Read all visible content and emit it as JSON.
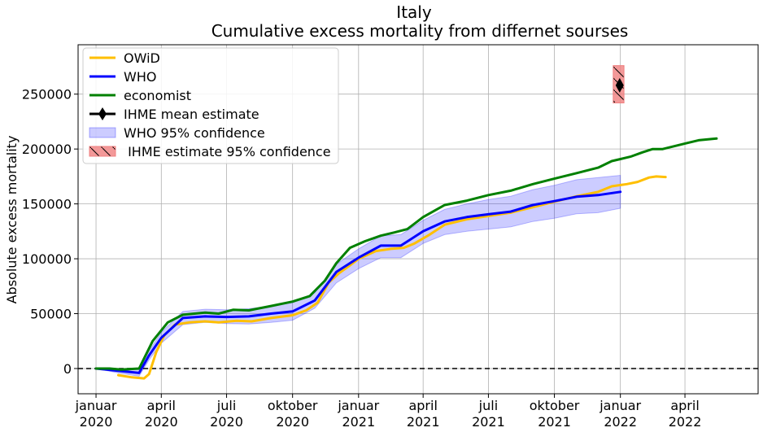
{
  "chart_data": {
    "type": "line",
    "title": "Italy",
    "subtitle": "Cumulative excess mortality from differnet sourses",
    "xlabel": "",
    "ylabel": "Absolute excess mortality",
    "x_axis": "date",
    "xlim": [
      "2019-12-07",
      "2022-07-12"
    ],
    "ylim": [
      -23000,
      295000
    ],
    "grid": true,
    "legend_position": "top-left",
    "x_ticks": [
      {
        "date": "2020-01-01",
        "label1": "januar",
        "label2": "2020"
      },
      {
        "date": "2020-04-01",
        "label1": "april",
        "label2": "2020"
      },
      {
        "date": "2020-07-01",
        "label1": "juli",
        "label2": "2020"
      },
      {
        "date": "2020-10-01",
        "label1": "oktober",
        "label2": "2020"
      },
      {
        "date": "2021-01-01",
        "label1": "januar",
        "label2": "2021"
      },
      {
        "date": "2021-04-01",
        "label1": "april",
        "label2": "2021"
      },
      {
        "date": "2021-07-01",
        "label1": "juli",
        "label2": "2021"
      },
      {
        "date": "2021-10-01",
        "label1": "oktober",
        "label2": "2021"
      },
      {
        "date": "2022-01-01",
        "label1": "januar",
        "label2": "2022"
      },
      {
        "date": "2022-04-01",
        "label1": "april",
        "label2": "2022"
      }
    ],
    "y_ticks": [
      0,
      50000,
      100000,
      150000,
      200000,
      250000
    ],
    "y_tick_labels": [
      "0",
      "50000",
      "100000",
      "150000",
      "200000",
      "250000"
    ],
    "zero_line": {
      "y": 0,
      "style": "dashed",
      "color": "#000000"
    },
    "series": [
      {
        "name": "OWiD",
        "color": "#ffbf00",
        "points": [
          [
            "2020-02-01",
            -6000
          ],
          [
            "2020-02-20",
            -8000
          ],
          [
            "2020-03-08",
            -9000
          ],
          [
            "2020-03-15",
            -5000
          ],
          [
            "2020-03-25",
            15000
          ],
          [
            "2020-04-05",
            30000
          ],
          [
            "2020-04-20",
            40000
          ],
          [
            "2020-05-10",
            42000
          ],
          [
            "2020-06-01",
            43000
          ],
          [
            "2020-06-20",
            42000
          ],
          [
            "2020-07-15",
            43500
          ],
          [
            "2020-08-05",
            43000
          ],
          [
            "2020-09-01",
            46000
          ],
          [
            "2020-10-01",
            48500
          ],
          [
            "2020-10-20",
            53000
          ],
          [
            "2020-11-05",
            60000
          ],
          [
            "2020-11-20",
            78000
          ],
          [
            "2020-12-05",
            87000
          ],
          [
            "2020-12-20",
            94000
          ],
          [
            "2021-01-01",
            100000
          ],
          [
            "2021-01-25",
            107000
          ],
          [
            "2021-02-15",
            109000
          ],
          [
            "2021-03-05",
            110000
          ],
          [
            "2021-03-20",
            114000
          ],
          [
            "2021-04-10",
            122000
          ],
          [
            "2021-05-01",
            131000
          ],
          [
            "2021-06-01",
            136000
          ],
          [
            "2021-07-01",
            139000
          ],
          [
            "2021-08-01",
            142000
          ],
          [
            "2021-09-01",
            147000
          ],
          [
            "2021-10-01",
            152000
          ],
          [
            "2021-11-01",
            157000
          ],
          [
            "2021-12-01",
            161000
          ],
          [
            "2021-12-20",
            166000
          ],
          [
            "2022-01-10",
            168000
          ],
          [
            "2022-01-25",
            170000
          ],
          [
            "2022-02-10",
            174000
          ],
          [
            "2022-02-20",
            175000
          ],
          [
            "2022-03-05",
            174500
          ]
        ]
      },
      {
        "name": "WHO",
        "color": "#0000ff",
        "points": [
          [
            "2020-01-01",
            0
          ],
          [
            "2020-02-01",
            -2000
          ],
          [
            "2020-03-01",
            -4000
          ],
          [
            "2020-03-15",
            12000
          ],
          [
            "2020-04-01",
            28000
          ],
          [
            "2020-05-01",
            46000
          ],
          [
            "2020-06-01",
            47500
          ],
          [
            "2020-07-01",
            47000
          ],
          [
            "2020-08-01",
            47500
          ],
          [
            "2020-09-01",
            50000
          ],
          [
            "2020-10-01",
            52000
          ],
          [
            "2020-11-01",
            62000
          ],
          [
            "2020-12-01",
            88000
          ],
          [
            "2021-01-01",
            101000
          ],
          [
            "2021-02-01",
            112000
          ],
          [
            "2021-03-01",
            112000
          ],
          [
            "2021-04-01",
            125000
          ],
          [
            "2021-05-01",
            134000
          ],
          [
            "2021-06-01",
            138000
          ],
          [
            "2021-07-01",
            140500
          ],
          [
            "2021-08-01",
            143000
          ],
          [
            "2021-09-01",
            149000
          ],
          [
            "2021-10-01",
            152500
          ],
          [
            "2021-11-01",
            156500
          ],
          [
            "2021-12-01",
            158000
          ],
          [
            "2022-01-01",
            161000
          ]
        ]
      },
      {
        "name": "economist",
        "color": "#008000",
        "points": [
          [
            "2020-01-01",
            0
          ],
          [
            "2020-01-20",
            0
          ],
          [
            "2020-02-05",
            -1000
          ],
          [
            "2020-03-01",
            0
          ],
          [
            "2020-03-20",
            25000
          ],
          [
            "2020-04-10",
            42000
          ],
          [
            "2020-05-01",
            49000
          ],
          [
            "2020-06-01",
            51000
          ],
          [
            "2020-06-20",
            50000
          ],
          [
            "2020-07-10",
            53500
          ],
          [
            "2020-08-01",
            53000
          ],
          [
            "2020-09-01",
            57000
          ],
          [
            "2020-10-01",
            61000
          ],
          [
            "2020-10-25",
            66000
          ],
          [
            "2020-11-15",
            80000
          ],
          [
            "2020-12-01",
            96000
          ],
          [
            "2020-12-20",
            110000
          ],
          [
            "2021-01-10",
            116000
          ],
          [
            "2021-02-01",
            121000
          ],
          [
            "2021-02-20",
            124000
          ],
          [
            "2021-03-10",
            127000
          ],
          [
            "2021-04-01",
            138000
          ],
          [
            "2021-05-01",
            149000
          ],
          [
            "2021-06-01",
            153000
          ],
          [
            "2021-07-01",
            158000
          ],
          [
            "2021-08-01",
            162000
          ],
          [
            "2021-09-01",
            168000
          ],
          [
            "2021-10-01",
            173000
          ],
          [
            "2021-11-01",
            178000
          ],
          [
            "2021-12-01",
            183000
          ],
          [
            "2021-12-20",
            189000
          ],
          [
            "2022-01-15",
            193000
          ],
          [
            "2022-02-01",
            197000
          ],
          [
            "2022-02-15",
            200000
          ],
          [
            "2022-03-01",
            200000
          ],
          [
            "2022-04-01",
            205000
          ],
          [
            "2022-04-20",
            208000
          ],
          [
            "2022-05-15",
            209500
          ]
        ]
      }
    ],
    "confidence_band": {
      "name": "WHO 95% confidence",
      "color": "#0000ff",
      "opacity": 0.2,
      "points": [
        [
          "2020-01-01",
          0,
          0
        ],
        [
          "2020-02-01",
          -4000,
          0
        ],
        [
          "2020-03-01",
          -7000,
          -1000
        ],
        [
          "2020-03-15",
          8000,
          16000
        ],
        [
          "2020-04-01",
          23000,
          33000
        ],
        [
          "2020-05-01",
          40000,
          52000
        ],
        [
          "2020-06-01",
          42000,
          54000
        ],
        [
          "2020-07-01",
          41000,
          53500
        ],
        [
          "2020-08-01",
          40500,
          54500
        ],
        [
          "2020-09-01",
          42000,
          57000
        ],
        [
          "2020-10-01",
          44000,
          60000
        ],
        [
          "2020-11-01",
          55000,
          69000
        ],
        [
          "2020-12-01",
          78000,
          95000
        ],
        [
          "2021-01-01",
          91000,
          109000
        ],
        [
          "2021-02-01",
          101000,
          121000
        ],
        [
          "2021-03-01",
          101000,
          122000
        ],
        [
          "2021-04-01",
          114000,
          135000
        ],
        [
          "2021-05-01",
          122000,
          145000
        ],
        [
          "2021-06-01",
          125000,
          150000
        ],
        [
          "2021-07-01",
          127000,
          154000
        ],
        [
          "2021-08-01",
          129000,
          157000
        ],
        [
          "2021-09-01",
          134000,
          163000
        ],
        [
          "2021-10-01",
          137000,
          167000
        ],
        [
          "2021-11-01",
          141000,
          172000
        ],
        [
          "2021-12-01",
          142000,
          174000
        ],
        [
          "2022-01-01",
          146000,
          176000
        ]
      ]
    },
    "ihme": {
      "mean_label": "IHME mean estimate",
      "date": "2021-12-31",
      "mean": 258000,
      "lower": 242000,
      "upper": 276000,
      "box_start": "2021-12-22",
      "box_end": "2022-01-06",
      "confidence_label": " IHME estimate 95% confidence",
      "box_color": "#f08080"
    }
  }
}
